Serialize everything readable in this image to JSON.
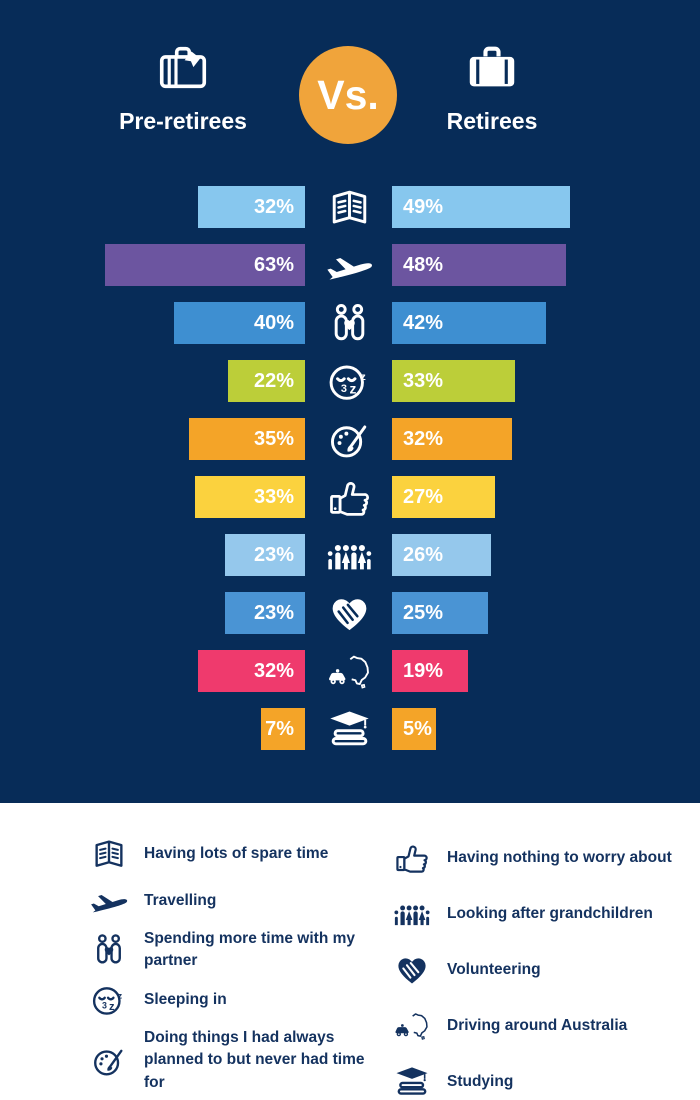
{
  "colors": {
    "background_navy": "#072C58",
    "panel_white": "#FFFFFF",
    "vs_circle_orange": "#F0A43B",
    "bar_text_white": "#FFFFFF",
    "legend_text_navy": "#14325F"
  },
  "header": {
    "left_label": "Pre-retirees",
    "vs_label": "Vs.",
    "right_label": "Retirees"
  },
  "chart_data": {
    "type": "bar",
    "orientation": "horizontal-mirrored",
    "unit": "%",
    "title": "Pre-retirees Vs. Retirees",
    "categories": [
      "Having lots of spare time",
      "Travelling",
      "Spending more time with my partner",
      "Sleeping in",
      "Doing things I had always planned to but never had time for",
      "Having nothing to worry about",
      "Looking after grandchildren",
      "Volunteering",
      "Driving around Australia",
      "Studying"
    ],
    "series": [
      {
        "name": "Pre-retirees",
        "values": [
          32,
          63,
          40,
          22,
          35,
          33,
          23,
          23,
          32,
          7
        ]
      },
      {
        "name": "Retirees",
        "values": [
          49,
          48,
          42,
          33,
          32,
          27,
          26,
          25,
          19,
          5
        ]
      }
    ],
    "row_colors": [
      "#87C7EE",
      "#6C55A0",
      "#3E8FD1",
      "#BCCE39",
      "#F4A428",
      "#FBD23E",
      "#95C8EC",
      "#4A94D4",
      "#EF3A6D",
      "#F4A428"
    ],
    "icons": [
      "spare-time-book",
      "travelling-plane",
      "partner-couple",
      "sleeping-face",
      "hobby-palette",
      "thumbs-up",
      "grandchildren-family",
      "heart-in-hands",
      "car-australia",
      "graduation-books"
    ]
  },
  "legend": {
    "left": [
      {
        "icon": "spare-time-book",
        "label": "Having lots of spare time"
      },
      {
        "icon": "travelling-plane",
        "label": "Travelling"
      },
      {
        "icon": "partner-couple",
        "label": "Spending more time with my partner"
      },
      {
        "icon": "sleeping-face",
        "label": "Sleeping in"
      },
      {
        "icon": "hobby-palette",
        "label": "Doing things I had always planned to but never had time for"
      }
    ],
    "right": [
      {
        "icon": "thumbs-up",
        "label": "Having nothing to worry about"
      },
      {
        "icon": "grandchildren-family",
        "label": "Looking after grandchildren"
      },
      {
        "icon": "heart-in-hands",
        "label": "Volunteering"
      },
      {
        "icon": "car-australia",
        "label": "Driving around Australia"
      },
      {
        "icon": "graduation-books",
        "label": "Studying"
      }
    ]
  }
}
